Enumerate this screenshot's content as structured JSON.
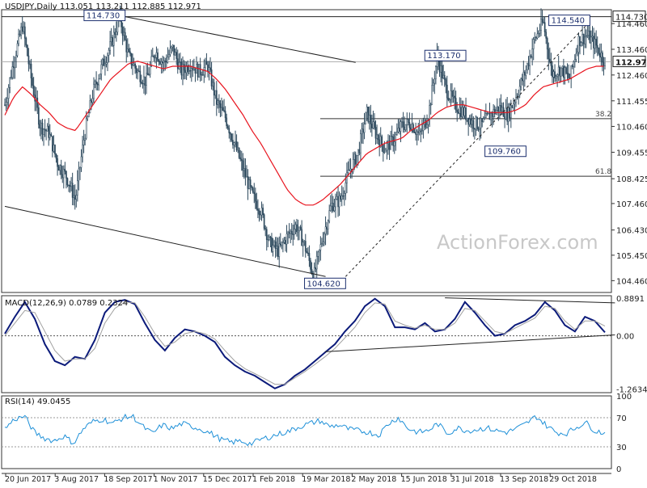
{
  "chart_data": [
    {
      "type": "candlestick",
      "panel": "price",
      "symbol": "USDJPY",
      "timeframe": "Daily",
      "ohlc": {
        "open": "113.051",
        "high": "113.211",
        "low": "112.885",
        "close": "112.971"
      },
      "title": "USDJPY,Daily  113.051 113.211 112.885 112.971",
      "watermark": "ActionForex.com",
      "ylim": [
        104.0,
        115.0
      ],
      "y_ticks": [
        "114.460",
        "113.460",
        "112.460",
        "111.455",
        "110.460",
        "109.455",
        "108.425",
        "107.460",
        "106.430",
        "105.450",
        "104.460"
      ],
      "current_price": "112.971",
      "moving_average_color": "#e8141e",
      "candle_color": "#2e4a5e",
      "annotations": [
        {
          "text": "114.730",
          "date_index": 96,
          "price": 114.73,
          "kind": "label"
        },
        {
          "text": "113.170",
          "date_index": 368,
          "price": 113.17,
          "kind": "label"
        },
        {
          "text": "114.540",
          "date_index": 467,
          "price": 114.54,
          "kind": "label"
        },
        {
          "text": "109.760",
          "date_index": 416,
          "price": 109.76,
          "kind": "label"
        },
        {
          "text": "104.620",
          "date_index": 272,
          "price": 104.62,
          "kind": "label"
        }
      ],
      "horizontal_levels": [
        {
          "price": 114.73,
          "label": "114.730",
          "style": "solid"
        },
        {
          "price": 112.971,
          "label": "112.971",
          "style": "gray"
        },
        {
          "price": 110.76,
          "label": "38.2",
          "style": "fib"
        },
        {
          "price": 108.52,
          "label": "61.8",
          "style": "fib"
        }
      ],
      "trendlines": [
        {
          "from": [
            96,
            114.73
          ],
          "to": [
            280,
            112.95
          ],
          "style": "solid"
        },
        {
          "from": [
            0,
            107.35
          ],
          "to": [
            256,
            104.62
          ],
          "style": "solid"
        },
        {
          "from": [
            272,
            104.62
          ],
          "to": [
            467,
            114.54
          ],
          "style": "dashed"
        }
      ],
      "price_series": [
        111.3,
        113.0,
        114.4,
        112.3,
        110.5,
        110.2,
        109.0,
        108.5,
        107.6,
        110.1,
        111.8,
        112.8,
        113.6,
        114.73,
        113.2,
        112.6,
        112.2,
        113.4,
        112.9,
        113.5,
        112.6,
        112.9,
        112.6,
        112.8,
        111.4,
        110.8,
        109.8,
        108.8,
        107.8,
        107.2,
        105.9,
        105.6,
        106.2,
        106.6,
        105.8,
        104.62,
        106.1,
        107.4,
        107.6,
        108.7,
        109.4,
        111.0,
        110.2,
        109.6,
        109.9,
        110.5,
        110.6,
        110.1,
        110.9,
        113.17,
        111.9,
        111.3,
        111.0,
        110.6,
        110.5,
        110.9,
        111.2,
        110.9,
        111.7,
        112.6,
        113.8,
        114.54,
        112.5,
        112.7,
        112.3,
        113.8,
        114.0,
        113.6,
        112.971
      ],
      "ma_series": [
        110.9,
        111.6,
        112.0,
        111.7,
        111.3,
        111.0,
        110.6,
        110.4,
        110.3,
        110.8,
        111.3,
        111.8,
        112.3,
        112.6,
        112.9,
        113.0,
        112.9,
        112.8,
        112.7,
        112.8,
        112.8,
        112.8,
        112.7,
        112.6,
        112.3,
        111.9,
        111.4,
        110.9,
        110.3,
        109.8,
        109.2,
        108.6,
        108.0,
        107.6,
        107.4,
        107.4,
        107.6,
        107.9,
        108.2,
        108.6,
        109.0,
        109.4,
        109.6,
        109.8,
        109.9,
        110.0,
        110.3,
        110.5,
        110.7,
        111.0,
        111.2,
        111.3,
        111.3,
        111.2,
        111.1,
        111.0,
        111.0,
        111.0,
        111.1,
        111.3,
        111.7,
        112.0,
        112.1,
        112.2,
        112.3,
        112.5,
        112.7,
        112.8,
        112.8
      ],
      "x_tick_labels": [
        "20 Jun 2017",
        "3 Aug 2017",
        "18 Sep 2017",
        "1 Nov 2017",
        "15 Dec 2017",
        "1 Feb 2018",
        "19 Mar 2018",
        "2 May 2018",
        "15 Jun 2018",
        "31 Jul 2018",
        "13 Sep 2018",
        "29 Oct 2018"
      ]
    },
    {
      "type": "line",
      "panel": "macd",
      "label": "MACD(12,26,9) 0.0789 0.2324",
      "params": "12,26,9",
      "macd_value": "0.0789",
      "signal_value": "0.2324",
      "ylim": [
        -1.35,
        0.95
      ],
      "y_ticks": [
        "0.8891",
        "0.00",
        "-1.2634"
      ],
      "series": [
        {
          "name": "MACD",
          "color": "#0b1a7a",
          "values": [
            0.05,
            0.45,
            0.8,
            0.4,
            -0.2,
            -0.6,
            -0.7,
            -0.5,
            -0.55,
            -0.1,
            0.55,
            0.8,
            0.85,
            0.75,
            0.3,
            -0.1,
            -0.35,
            -0.05,
            0.15,
            0.1,
            0.0,
            -0.15,
            -0.5,
            -0.7,
            -0.85,
            -0.95,
            -1.1,
            -1.25,
            -1.15,
            -0.95,
            -0.8,
            -0.6,
            -0.4,
            -0.2,
            0.1,
            0.35,
            0.7,
            0.88,
            0.7,
            0.2,
            0.2,
            0.15,
            0.3,
            0.1,
            0.15,
            0.4,
            0.8,
            0.55,
            0.25,
            0.0,
            0.05,
            0.25,
            0.35,
            0.5,
            0.8,
            0.6,
            0.25,
            0.1,
            0.45,
            0.35,
            0.08
          ]
        },
        {
          "name": "Signal",
          "color": "#a0a0a0",
          "values": [
            0.0,
            0.3,
            0.6,
            0.55,
            0.1,
            -0.35,
            -0.6,
            -0.55,
            -0.55,
            -0.3,
            0.3,
            0.65,
            0.8,
            0.78,
            0.45,
            0.05,
            -0.25,
            -0.15,
            0.05,
            0.1,
            0.05,
            -0.08,
            -0.35,
            -0.6,
            -0.78,
            -0.9,
            -1.02,
            -1.15,
            -1.15,
            -1.0,
            -0.85,
            -0.68,
            -0.5,
            -0.3,
            -0.05,
            0.2,
            0.55,
            0.78,
            0.75,
            0.35,
            0.25,
            0.18,
            0.25,
            0.15,
            0.15,
            0.3,
            0.65,
            0.6,
            0.35,
            0.1,
            0.05,
            0.18,
            0.3,
            0.42,
            0.7,
            0.65,
            0.35,
            0.15,
            0.35,
            0.35,
            0.23
          ]
        }
      ],
      "trendlines": [
        {
          "from": [
            44,
            0.9
          ],
          "to": [
            61,
            0.78
          ]
        },
        {
          "from": [
            32,
            -0.38
          ],
          "to": [
            61,
            0.02
          ]
        }
      ]
    },
    {
      "type": "line",
      "panel": "rsi",
      "label": "RSI(14) 49.0455",
      "period": "14",
      "rsi_value": "49.0455",
      "ylim": [
        0,
        100
      ],
      "y_ticks": [
        "100",
        "70",
        "30",
        "0"
      ],
      "levels": [
        70,
        30
      ],
      "series": [
        {
          "name": "RSI",
          "color": "#1e90d8",
          "values": [
            55,
            68,
            72,
            50,
            42,
            38,
            45,
            35,
            55,
            65,
            68,
            62,
            70,
            72,
            58,
            48,
            60,
            55,
            62,
            58,
            54,
            48,
            40,
            36,
            38,
            34,
            40,
            44,
            48,
            52,
            58,
            62,
            66,
            58,
            60,
            54,
            52,
            50,
            46,
            62,
            70,
            55,
            50,
            52,
            62,
            48,
            56,
            52,
            54,
            56,
            52,
            50,
            55,
            62,
            72,
            60,
            50,
            48,
            56,
            64,
            52,
            49
          ]
        }
      ]
    }
  ]
}
